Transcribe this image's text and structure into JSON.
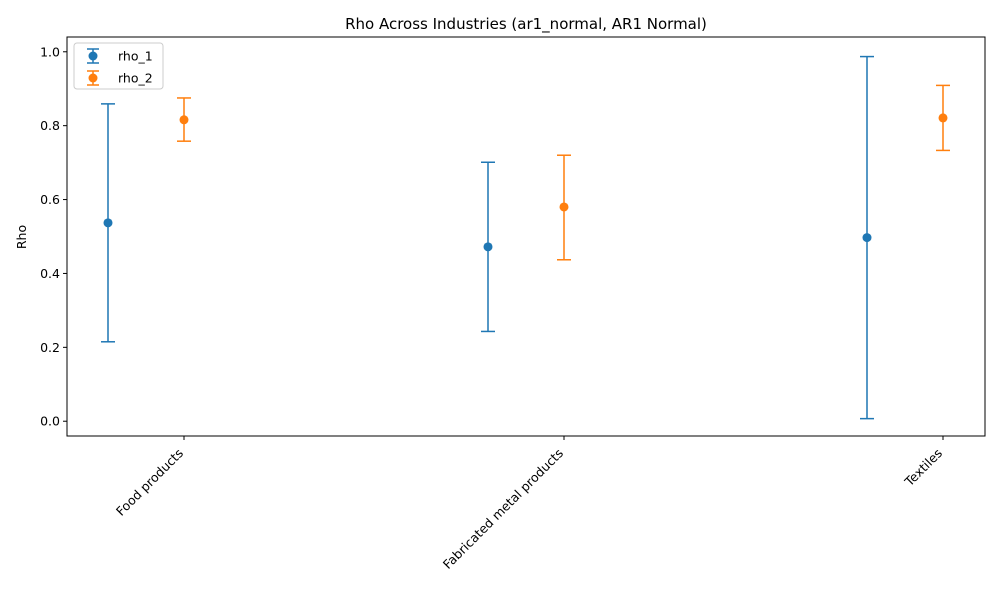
{
  "chart_data": {
    "type": "errorbar",
    "title": "Rho Across Industries (ar1_normal, AR1 Normal)",
    "xlabel": "",
    "ylabel": "Rho",
    "ylim": [
      -0.04,
      1.04
    ],
    "yticks": [
      "0.0",
      "0.2",
      "0.4",
      "0.6",
      "0.8",
      "1.0"
    ],
    "categories": [
      "Food products",
      "Fabricated metal products",
      "Textiles"
    ],
    "legend_position": "top-left",
    "grid": false,
    "series": [
      {
        "name": "rho_1",
        "color": "#1f77b4",
        "values": [
          0.537,
          0.472,
          0.497
        ],
        "lower": [
          0.215,
          0.243,
          0.007
        ],
        "upper": [
          0.859,
          0.701,
          0.987
        ]
      },
      {
        "name": "rho_2",
        "color": "#ff7f0e",
        "values": [
          0.816,
          0.58,
          0.821
        ],
        "lower": [
          0.758,
          0.437,
          0.733
        ],
        "upper": [
          0.875,
          0.72,
          0.909
        ]
      }
    ]
  }
}
